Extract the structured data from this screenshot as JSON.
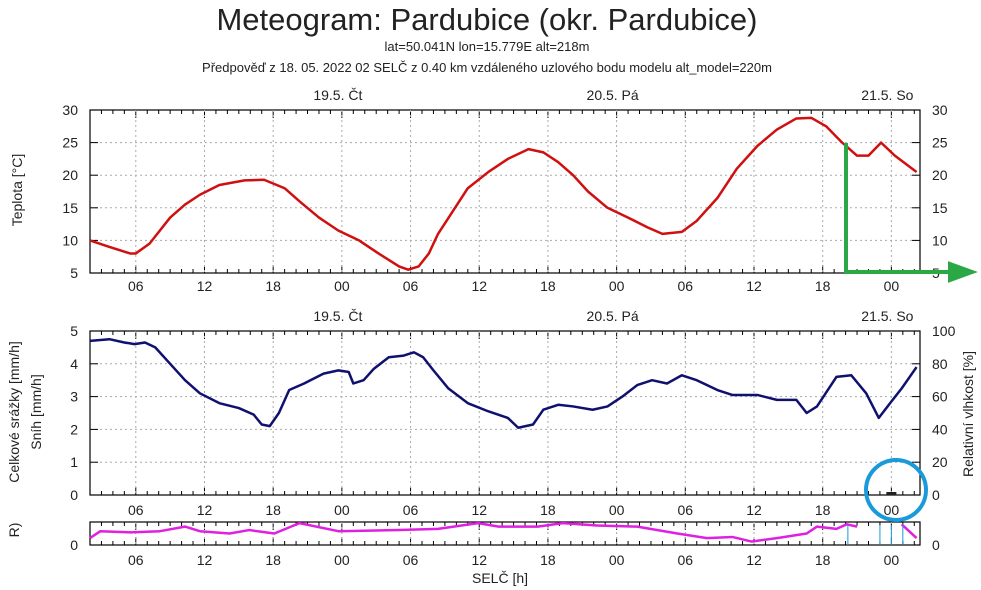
{
  "chart_data": [
    {
      "type": "line",
      "title": "Meteogram: Pardubice (okr. Pardubice)",
      "subtitle1": "lat=50.041N lon=15.779E alt=218m",
      "subtitle2": "Předpověď z 18. 05. 2022 02 SELČ z 0.40 km vzdáleného uzlového bodu modelu alt_model=220m",
      "ylabel": "Teplota [°C]",
      "ylim": [
        5,
        30
      ],
      "yticks": [
        "5",
        "10",
        "15",
        "20",
        "25",
        "30"
      ],
      "xlim_hours": [
        0,
        72.5
      ],
      "day_labels": [
        {
          "h": 22,
          "label": "19.5. Čt"
        },
        {
          "h": 46,
          "label": "20.5. Pá"
        },
        {
          "h": 70,
          "label": "21.5. So"
        }
      ],
      "xtick_labels": [
        {
          "h": 4,
          "label": "06"
        },
        {
          "h": 10,
          "label": "12"
        },
        {
          "h": 16,
          "label": "18"
        },
        {
          "h": 22,
          "label": "00"
        },
        {
          "h": 28,
          "label": "06"
        },
        {
          "h": 34,
          "label": "12"
        },
        {
          "h": 40,
          "label": "18"
        },
        {
          "h": 46,
          "label": "00"
        },
        {
          "h": 52,
          "label": "06"
        },
        {
          "h": 58,
          "label": "12"
        },
        {
          "h": 64,
          "label": "18"
        },
        {
          "h": 70,
          "label": "00"
        }
      ],
      "series": [
        {
          "name": "Teplota",
          "color": "#d01010",
          "points": [
            [
              0,
              10
            ],
            [
              1.7,
              9
            ],
            [
              3.5,
              8
            ],
            [
              4,
              8
            ],
            [
              5.2,
              9.5
            ],
            [
              7,
              13.5
            ],
            [
              8.3,
              15.5
            ],
            [
              9.6,
              17
            ],
            [
              11.3,
              18.5
            ],
            [
              13.5,
              19.2
            ],
            [
              15.2,
              19.3
            ],
            [
              17,
              18
            ],
            [
              18.3,
              16
            ],
            [
              20,
              13.5
            ],
            [
              21.7,
              11.5
            ],
            [
              23.5,
              10
            ],
            [
              25.2,
              8
            ],
            [
              27,
              6
            ],
            [
              27.8,
              5.5
            ],
            [
              28.7,
              6
            ],
            [
              29.6,
              8
            ],
            [
              30.4,
              11
            ],
            [
              31.7,
              14.5
            ],
            [
              33,
              18
            ],
            [
              34.8,
              20.5
            ],
            [
              36.5,
              22.5
            ],
            [
              38.3,
              24
            ],
            [
              39.6,
              23.5
            ],
            [
              40.9,
              22
            ],
            [
              42.2,
              20
            ],
            [
              43.5,
              17.5
            ],
            [
              45.2,
              15
            ],
            [
              47,
              13.5
            ],
            [
              48.7,
              12
            ],
            [
              50,
              11
            ],
            [
              51.7,
              11.3
            ],
            [
              53,
              13
            ],
            [
              54.8,
              16.5
            ],
            [
              56.5,
              21
            ],
            [
              58.3,
              24.5
            ],
            [
              60,
              27
            ],
            [
              61.7,
              28.7
            ],
            [
              63,
              28.8
            ],
            [
              64.3,
              27.5
            ],
            [
              65.7,
              25
            ],
            [
              67,
              23
            ],
            [
              68,
              23
            ],
            [
              69.1,
              25
            ],
            [
              70.3,
              23
            ],
            [
              72.2,
              20.5
            ]
          ]
        }
      ]
    },
    {
      "type": "line",
      "ylabel_left": "Celkové srážky [mm/h]",
      "ylabel_left2": "Sníh [mm/h]",
      "ylabel_right": "Relativní vlhkost [%]",
      "ylim_left": [
        0,
        5
      ],
      "ylim_right": [
        0,
        100
      ],
      "yticks_left": [
        "0",
        "1",
        "2",
        "3",
        "4",
        "5"
      ],
      "yticks_right": [
        "0",
        "20",
        "40",
        "60",
        "80",
        "100"
      ],
      "series": [
        {
          "name": "Relativní vlhkost",
          "color": "#101070",
          "points": [
            [
              0,
              94
            ],
            [
              1.7,
              95
            ],
            [
              3,
              93
            ],
            [
              3.9,
              92
            ],
            [
              4.8,
              93
            ],
            [
              5.7,
              90
            ],
            [
              7,
              80
            ],
            [
              8.3,
              70
            ],
            [
              9.6,
              62
            ],
            [
              11.3,
              56
            ],
            [
              13,
              53
            ],
            [
              14.3,
              49
            ],
            [
              15,
              43
            ],
            [
              15.7,
              42
            ],
            [
              16.5,
              50
            ],
            [
              17.4,
              64
            ],
            [
              18.7,
              68
            ],
            [
              20.4,
              74
            ],
            [
              21.7,
              76
            ],
            [
              22.6,
              75
            ],
            [
              23,
              68
            ],
            [
              23.9,
              70
            ],
            [
              24.8,
              77
            ],
            [
              26.1,
              84
            ],
            [
              27.4,
              85
            ],
            [
              28.3,
              87
            ],
            [
              29.1,
              84
            ],
            [
              30,
              76
            ],
            [
              31.3,
              65
            ],
            [
              33,
              56
            ],
            [
              34.8,
              51
            ],
            [
              36.5,
              47
            ],
            [
              37.4,
              41
            ],
            [
              38.7,
              43
            ],
            [
              39.6,
              52
            ],
            [
              40.9,
              55
            ],
            [
              42.2,
              54
            ],
            [
              43.9,
              52
            ],
            [
              45.2,
              54
            ],
            [
              46.5,
              60
            ],
            [
              47.8,
              67
            ],
            [
              49.1,
              70
            ],
            [
              50.4,
              68
            ],
            [
              51.7,
              73
            ],
            [
              53,
              70
            ],
            [
              54.8,
              64
            ],
            [
              56.1,
              61
            ],
            [
              58.3,
              61
            ],
            [
              60,
              58
            ],
            [
              61.7,
              58
            ],
            [
              62.6,
              50
            ],
            [
              63.5,
              54
            ],
            [
              65.2,
              72
            ],
            [
              66.5,
              73
            ],
            [
              67.8,
              62
            ],
            [
              68.9,
              47
            ],
            [
              70,
              57
            ],
            [
              70.9,
              65
            ],
            [
              72.2,
              78
            ]
          ]
        }
      ]
    },
    {
      "type": "line",
      "ylabel_left": "R)",
      "xlabel": "SELČ [h]",
      "yticks_left": [
        "0"
      ],
      "yticks_right": [
        "0"
      ],
      "ylim": [
        0,
        10
      ],
      "series": [
        {
          "name": "magenta",
          "color": "#e020e0",
          "segments": [
            [
              [
                0,
                3
              ],
              [
                0.9,
                6
              ],
              [
                3.5,
                5.5
              ],
              [
                6.1,
                6
              ],
              [
                8.3,
                8
              ],
              [
                9.6,
                6
              ],
              [
                12.2,
                5
              ],
              [
                13.9,
                6.5
              ],
              [
                16.1,
                5
              ],
              [
                18.3,
                9.5
              ],
              [
                21.7,
                6
              ],
              [
                27,
                6.5
              ],
              [
                30.4,
                7
              ],
              [
                33.9,
                9.5
              ],
              [
                35.7,
                8
              ],
              [
                39.1,
                8
              ],
              [
                41.3,
                9.5
              ],
              [
                44.3,
                8.5
              ],
              [
                47.8,
                8
              ],
              [
                51.3,
                5
              ],
              [
                53.9,
                3
              ],
              [
                56.1,
                3.5
              ],
              [
                57.8,
                1.5
              ],
              [
                60,
                3
              ],
              [
                62.6,
                5
              ],
              [
                63.5,
                8
              ],
              [
                65.2,
                7
              ],
              [
                66.1,
                9
              ],
              [
                67,
                8
              ]
            ],
            [
              [
                70.9,
                9
              ],
              [
                72.2,
                3
              ]
            ]
          ]
        }
      ]
    }
  ]
}
